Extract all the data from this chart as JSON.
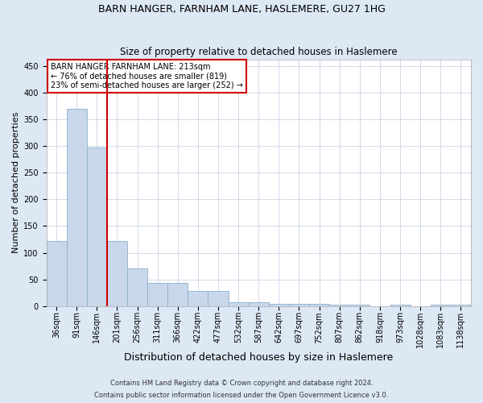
{
  "title1": "BARN HANGER, FARNHAM LANE, HASLEMERE, GU27 1HG",
  "title2": "Size of property relative to detached houses in Haslemere",
  "xlabel": "Distribution of detached houses by size in Haslemere",
  "ylabel": "Number of detached properties",
  "footnote1": "Contains HM Land Registry data © Crown copyright and database right 2024.",
  "footnote2": "Contains public sector information licensed under the Open Government Licence v3.0.",
  "categories": [
    "36sqm",
    "91sqm",
    "146sqm",
    "201sqm",
    "256sqm",
    "311sqm",
    "366sqm",
    "422sqm",
    "477sqm",
    "532sqm",
    "587sqm",
    "642sqm",
    "697sqm",
    "752sqm",
    "807sqm",
    "862sqm",
    "918sqm",
    "973sqm",
    "1028sqm",
    "1083sqm",
    "1138sqm"
  ],
  "values": [
    122,
    370,
    297,
    122,
    70,
    44,
    44,
    28,
    28,
    8,
    8,
    5,
    5,
    5,
    2,
    2,
    0,
    2,
    0,
    2,
    2
  ],
  "bar_color": "#c8d8ea",
  "bar_edge_color": "#8ab0cc",
  "vline_color": "#cc0000",
  "vline_x": 2.5,
  "annotation_title": "BARN HANGER FARNHAM LANE: 213sqm",
  "annotation_line2": "← 76% of detached houses are smaller (819)",
  "annotation_line3": "23% of semi-detached houses are larger (252) →",
  "ylim": [
    0,
    462
  ],
  "yticks": [
    0,
    50,
    100,
    150,
    200,
    250,
    300,
    350,
    400,
    450
  ],
  "background_color": "#dde8f5",
  "grid_color": "#c0cce0",
  "title1_fontsize": 9,
  "title2_fontsize": 8.5,
  "ylabel_fontsize": 8,
  "xlabel_fontsize": 9,
  "tick_fontsize": 7,
  "footnote_fontsize": 6
}
